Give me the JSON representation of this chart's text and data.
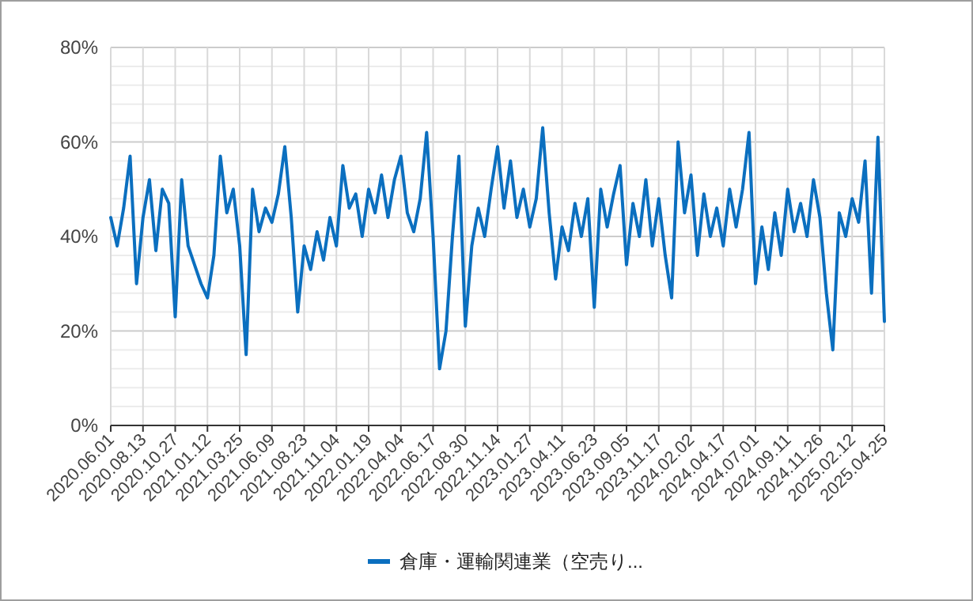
{
  "chart_data": {
    "type": "line",
    "categories": [
      "2020.06.01",
      null,
      null,
      null,
      null,
      "2020.08.13",
      null,
      null,
      null,
      null,
      "2020.10.27",
      null,
      null,
      null,
      null,
      "2021.01.12",
      null,
      null,
      null,
      null,
      "2021.03.25",
      null,
      null,
      null,
      null,
      "2021.06.09",
      null,
      null,
      null,
      null,
      "2021.08.23",
      null,
      null,
      null,
      null,
      "2021.11.04",
      null,
      null,
      null,
      null,
      "2022.01.19",
      null,
      null,
      null,
      null,
      "2022.04.04",
      null,
      null,
      null,
      null,
      "2022.06.17",
      null,
      null,
      null,
      null,
      "2022.08.30",
      null,
      null,
      null,
      null,
      "2022.11.14",
      null,
      null,
      null,
      null,
      "2023.01.27",
      null,
      null,
      null,
      null,
      "2023.04.11",
      null,
      null,
      null,
      null,
      "2023.06.23",
      null,
      null,
      null,
      null,
      "2023.09.05",
      null,
      null,
      null,
      null,
      "2023.11.17",
      null,
      null,
      null,
      null,
      "2024.02.02",
      null,
      null,
      null,
      null,
      "2024.04.17",
      null,
      null,
      null,
      null,
      "2024.07.01",
      null,
      null,
      null,
      null,
      "2024.09.11",
      null,
      null,
      null,
      null,
      "2024.11.26",
      null,
      null,
      null,
      null,
      "2025.02.12",
      null,
      null,
      null,
      null,
      "2025.04.25"
    ],
    "series": [
      {
        "name": "倉庫・運輸関連業（空売り...",
        "color": "#0b6fbf",
        "values": [
          44,
          38,
          46,
          57,
          30,
          44,
          52,
          37,
          50,
          47,
          23,
          52,
          38,
          34,
          30,
          27,
          36,
          57,
          45,
          50,
          38,
          15,
          50,
          41,
          46,
          43,
          49,
          59,
          44,
          24,
          38,
          33,
          41,
          35,
          44,
          38,
          55,
          46,
          49,
          40,
          50,
          45,
          53,
          44,
          52,
          57,
          45,
          41,
          48,
          62,
          40,
          12,
          20,
          40,
          57,
          21,
          38,
          46,
          40,
          50,
          59,
          46,
          56,
          44,
          50,
          42,
          48,
          63,
          45,
          31,
          42,
          37,
          47,
          40,
          48,
          25,
          50,
          42,
          49,
          55,
          34,
          47,
          40,
          52,
          38,
          48,
          36,
          27,
          60,
          45,
          53,
          36,
          49,
          40,
          46,
          38,
          50,
          42,
          50,
          62,
          30,
          42,
          33,
          45,
          36,
          50,
          41,
          47,
          40,
          52,
          44,
          28,
          16,
          45,
          40,
          48,
          43,
          56,
          28,
          61,
          22
        ]
      }
    ],
    "ylim": [
      0,
      80
    ],
    "yticks": [
      {
        "value": 0,
        "label": "0%"
      },
      {
        "value": 4,
        "label": null
      },
      {
        "value": 8,
        "label": null
      },
      {
        "value": 12,
        "label": null
      },
      {
        "value": 16,
        "label": null
      },
      {
        "value": 20,
        "label": "20%"
      },
      {
        "value": 24,
        "label": null
      },
      {
        "value": 28,
        "label": null
      },
      {
        "value": 32,
        "label": null
      },
      {
        "value": 36,
        "label": null
      },
      {
        "value": 40,
        "label": "40%"
      },
      {
        "value": 44,
        "label": null
      },
      {
        "value": 48,
        "label": null
      },
      {
        "value": 52,
        "label": null
      },
      {
        "value": 56,
        "label": null
      },
      {
        "value": 60,
        "label": "60%"
      },
      {
        "value": 64,
        "label": null
      },
      {
        "value": 68,
        "label": null
      },
      {
        "value": 72,
        "label": null
      },
      {
        "value": 76,
        "label": null
      },
      {
        "value": 80,
        "label": "80%"
      }
    ],
    "grid": true,
    "legend": "bottom",
    "marker": "none",
    "line_style": "solid"
  }
}
